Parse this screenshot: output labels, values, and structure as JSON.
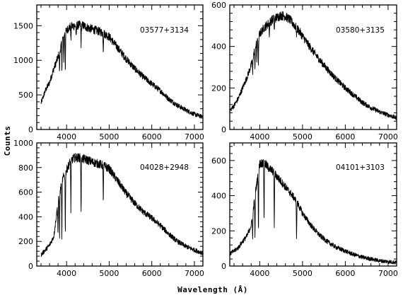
{
  "figure": {
    "xlabel": "Wavelength (Å)",
    "ylabel": "Counts"
  },
  "chart_data": [
    {
      "type": "line",
      "title": "03577+3134",
      "xlim": [
        3300,
        7200
      ],
      "ylim": [
        0,
        1800
      ],
      "xticks": [
        4000,
        5000,
        6000,
        7000
      ],
      "yticks": [
        0,
        500,
        1000,
        1500
      ],
      "series": [
        {
          "x": [
            3400,
            3500,
            3600,
            3700,
            3750,
            3800,
            3850,
            3900,
            3950,
            4000,
            4050,
            4100,
            4200,
            4300,
            4400,
            4500,
            4600,
            4700,
            4800,
            4900,
            5000,
            5200,
            5400,
            5600,
            5800,
            6000,
            6200,
            6400,
            6600,
            6800,
            7000,
            7200
          ],
          "y": [
            380,
            560,
            680,
            880,
            960,
            1050,
            1150,
            1300,
            1380,
            1430,
            1470,
            1490,
            1500,
            1510,
            1500,
            1470,
            1450,
            1430,
            1410,
            1380,
            1340,
            1180,
            1020,
            880,
            760,
            660,
            560,
            440,
            350,
            280,
            220,
            180
          ]
        }
      ],
      "absorption": [
        {
          "x": 3835,
          "depth": 300
        },
        {
          "x": 3889,
          "depth": 400
        },
        {
          "x": 3933,
          "depth": 350
        },
        {
          "x": 3970,
          "depth": 550
        },
        {
          "x": 4101,
          "depth": 200
        },
        {
          "x": 4226,
          "depth": 200
        },
        {
          "x": 4340,
          "depth": 280
        },
        {
          "x": 4861,
          "depth": 250
        }
      ]
    },
    {
      "type": "line",
      "title": "03580+3135",
      "xlim": [
        3300,
        7200
      ],
      "ylim": [
        0,
        600
      ],
      "xticks": [
        4000,
        5000,
        6000,
        7000
      ],
      "yticks": [
        0,
        200,
        400,
        600
      ],
      "series": [
        {
          "x": [
            3300,
            3400,
            3500,
            3600,
            3700,
            3800,
            3900,
            4000,
            4100,
            4200,
            4300,
            4400,
            4500,
            4600,
            4700,
            4800,
            4900,
            5000,
            5200,
            5400,
            5600,
            5800,
            6000,
            6200,
            6400,
            6600,
            6800,
            7000,
            7200
          ],
          "y": [
            90,
            115,
            150,
            200,
            250,
            310,
            400,
            460,
            490,
            510,
            530,
            540,
            550,
            545,
            530,
            505,
            480,
            450,
            390,
            335,
            285,
            240,
            200,
            165,
            130,
            105,
            85,
            70,
            55
          ]
        }
      ],
      "absorption": [
        {
          "x": 3835,
          "depth": 80
        },
        {
          "x": 3889,
          "depth": 110
        },
        {
          "x": 3933,
          "depth": 90
        },
        {
          "x": 3970,
          "depth": 130
        },
        {
          "x": 4226,
          "depth": 60
        },
        {
          "x": 4340,
          "depth": 60
        },
        {
          "x": 4861,
          "depth": 45
        }
      ]
    },
    {
      "type": "line",
      "title": "04028+2948",
      "xlim": [
        3300,
        7200
      ],
      "ylim": [
        0,
        1000
      ],
      "xticks": [
        4000,
        5000,
        6000,
        7000
      ],
      "yticks": [
        0,
        200,
        400,
        600,
        800,
        1000
      ],
      "series": [
        {
          "x": [
            3400,
            3500,
            3600,
            3700,
            3800,
            3900,
            4000,
            4100,
            4200,
            4300,
            4400,
            4500,
            4600,
            4700,
            4800,
            4900,
            5000,
            5200,
            5400,
            5600,
            5800,
            6000,
            6200,
            6400,
            6600,
            6800,
            7000,
            7200
          ],
          "y": [
            90,
            130,
            170,
            240,
            520,
            700,
            780,
            860,
            880,
            880,
            870,
            860,
            845,
            835,
            825,
            810,
            790,
            690,
            590,
            510,
            440,
            390,
            330,
            260,
            200,
            160,
            130,
            105
          ]
        }
      ],
      "absorption": [
        {
          "x": 3798,
          "depth": 250
        },
        {
          "x": 3835,
          "depth": 350
        },
        {
          "x": 3889,
          "depth": 450
        },
        {
          "x": 3970,
          "depth": 500
        },
        {
          "x": 4101,
          "depth": 420
        },
        {
          "x": 4340,
          "depth": 450
        },
        {
          "x": 4861,
          "depth": 300
        }
      ]
    },
    {
      "type": "line",
      "title": "04101+3103",
      "xlim": [
        3300,
        7200
      ],
      "ylim": [
        0,
        700
      ],
      "xticks": [
        4000,
        5000,
        6000,
        7000
      ],
      "yticks": [
        0,
        200,
        400,
        600
      ],
      "series": [
        {
          "x": [
            3300,
            3400,
            3500,
            3600,
            3700,
            3800,
            3900,
            4000,
            4100,
            4200,
            4300,
            4400,
            4500,
            4600,
            4700,
            4800,
            4900,
            5000,
            5200,
            5400,
            5600,
            5800,
            6000,
            6200,
            6400,
            6600,
            6800,
            7000,
            7200
          ],
          "y": [
            70,
            85,
            105,
            140,
            170,
            230,
            420,
            580,
            590,
            560,
            540,
            510,
            480,
            450,
            420,
            390,
            350,
            300,
            230,
            175,
            135,
            105,
            85,
            65,
            50,
            40,
            30,
            25,
            20
          ]
        }
      ],
      "absorption": [
        {
          "x": 3835,
          "depth": 150
        },
        {
          "x": 3889,
          "depth": 250
        },
        {
          "x": 3970,
          "depth": 330
        },
        {
          "x": 4101,
          "depth": 330
        },
        {
          "x": 4340,
          "depth": 300
        },
        {
          "x": 4861,
          "depth": 220
        }
      ]
    }
  ]
}
